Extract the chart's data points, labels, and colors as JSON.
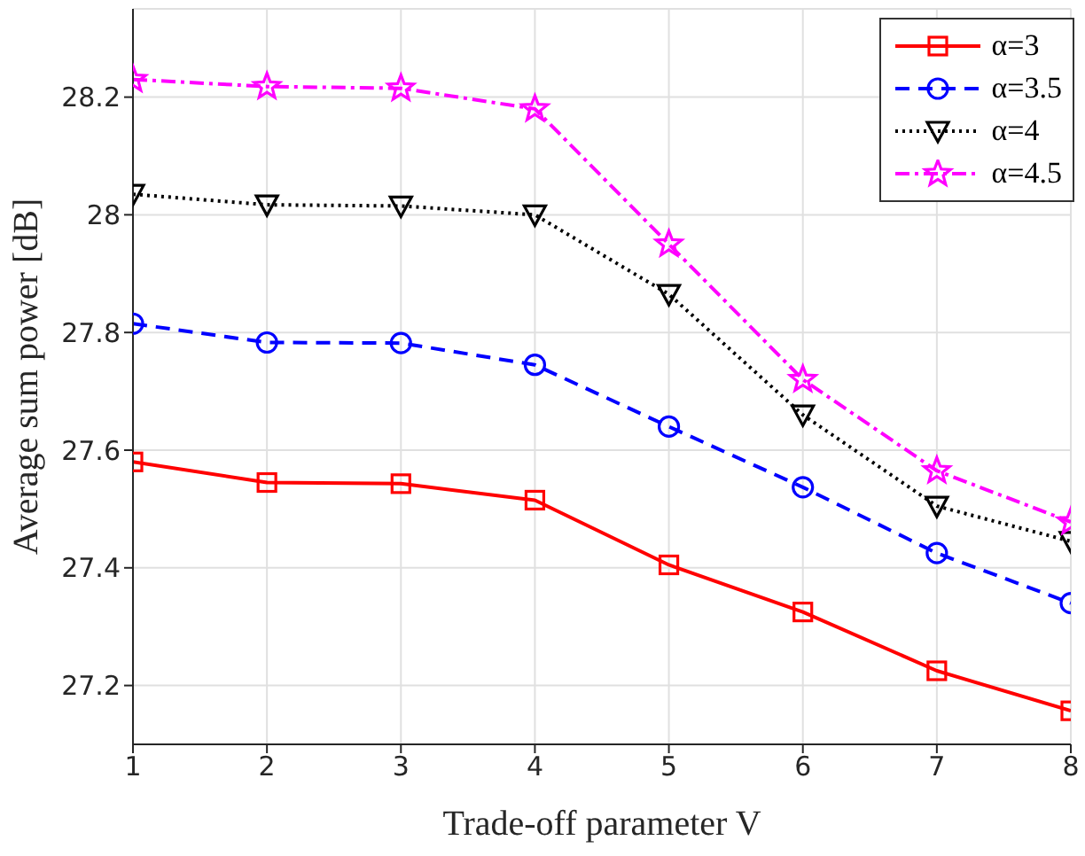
{
  "chart_data": {
    "type": "line",
    "xlabel": "Trade-off parameter V",
    "ylabel": "Average sum power [dB]",
    "x": [
      1,
      2,
      3,
      4,
      5,
      6,
      7,
      8
    ],
    "series": [
      {
        "name": "α=3",
        "color": "#ff0000",
        "marker": "square",
        "line_style": "solid",
        "values": [
          27.58,
          27.545,
          27.543,
          27.515,
          27.405,
          27.325,
          27.225,
          27.157
        ]
      },
      {
        "name": "α=3.5",
        "color": "#0000ff",
        "marker": "circle",
        "line_style": "dashed",
        "values": [
          27.815,
          27.783,
          27.782,
          27.745,
          27.64,
          27.537,
          27.425,
          27.34
        ]
      },
      {
        "name": "α=4",
        "color": "#000000",
        "marker": "triangle",
        "line_style": "dotted",
        "values": [
          28.035,
          28.017,
          28.015,
          28.0,
          27.865,
          27.66,
          27.505,
          27.445
        ]
      },
      {
        "name": "α=4.5",
        "color": "#ff00ff",
        "marker": "star",
        "line_style": "dashdot",
        "values": [
          28.23,
          28.218,
          28.215,
          28.18,
          27.95,
          27.72,
          27.565,
          27.478
        ]
      }
    ],
    "xlim": [
      1,
      8
    ],
    "xticks": [
      1,
      2,
      3,
      4,
      5,
      6,
      7,
      8
    ],
    "ylim": [
      27.1,
      28.35
    ],
    "yticks": [
      27.2,
      27.4,
      27.6,
      27.8,
      28,
      28.2
    ],
    "grid": true,
    "legend": "top right"
  }
}
